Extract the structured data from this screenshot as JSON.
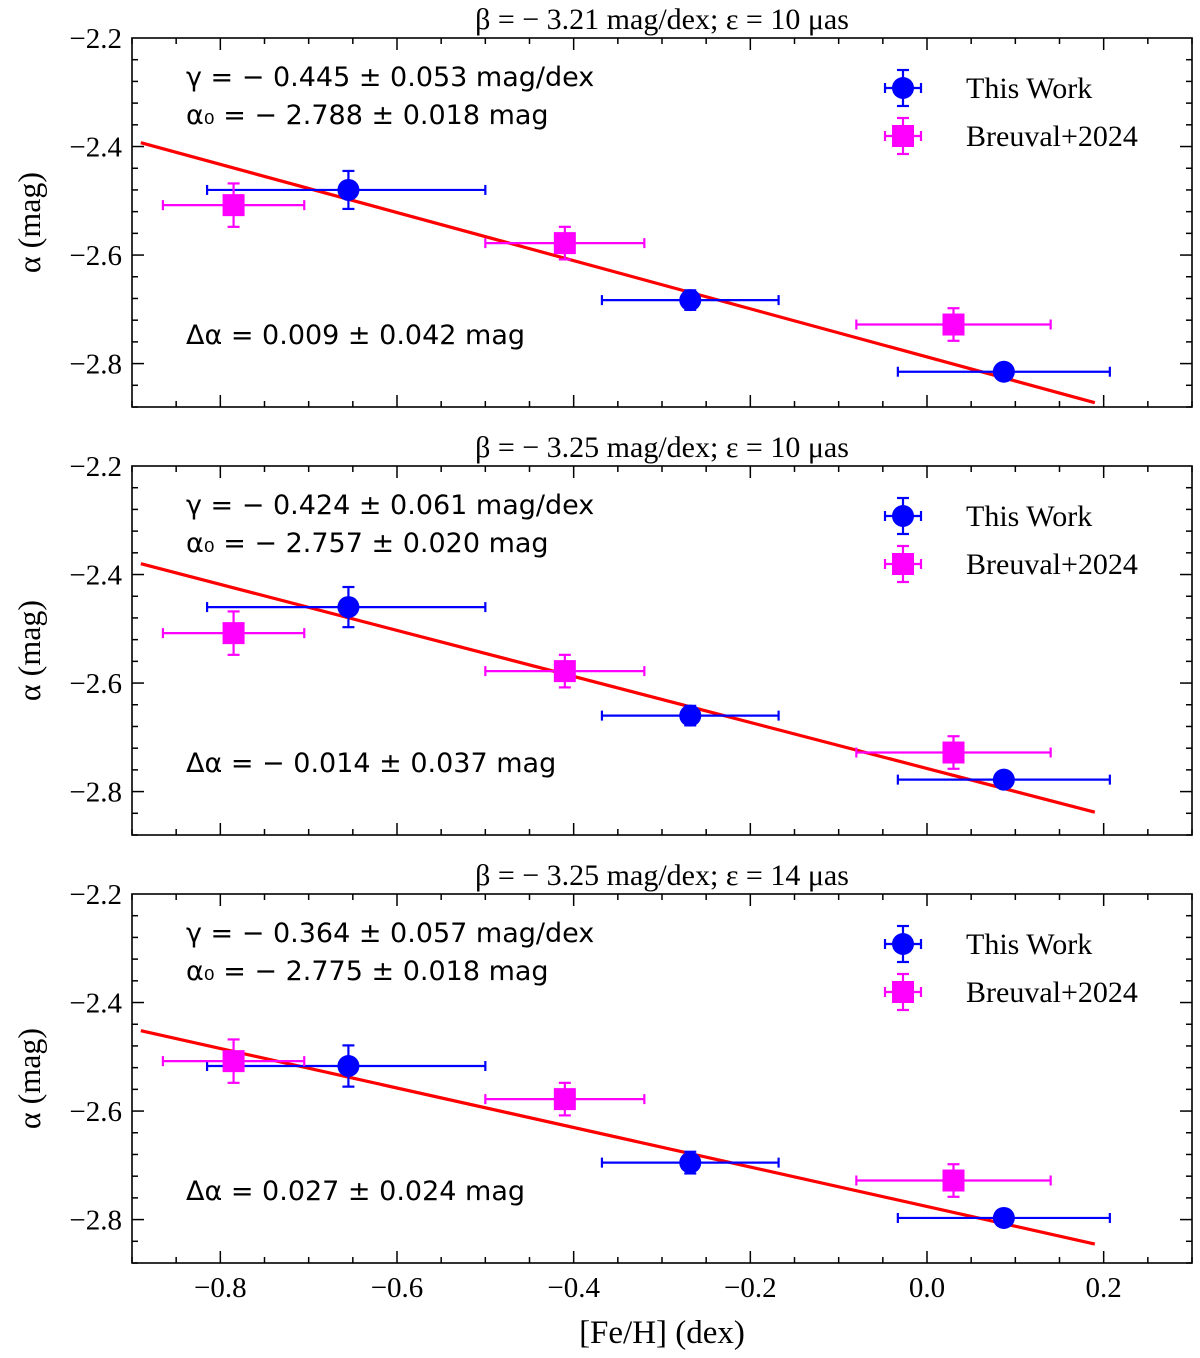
{
  "chart_data": {
    "type": "scatter",
    "x_axis": {
      "label": "[Fe/H] (dex)",
      "range": [
        -0.9,
        0.3
      ],
      "ticks": [
        -0.8,
        -0.6,
        -0.4,
        -0.2,
        0.0,
        0.2
      ],
      "tick_labels": [
        "−0.8",
        "−0.6",
        "−0.4",
        "−0.2",
        "0.0",
        "0.2"
      ]
    },
    "y_axis": {
      "label": "α (mag)",
      "range": [
        -2.88,
        -2.2
      ],
      "ticks": [
        -2.2,
        -2.4,
        -2.6,
        -2.8
      ],
      "tick_labels": [
        "−2.2",
        "−2.4",
        "−2.6",
        "−2.8"
      ]
    },
    "legend": {
      "placement": "top-right",
      "entries": [
        {
          "label": "This Work",
          "marker": "circle",
          "color": "#0000ff"
        },
        {
          "label": "Breuval+2024",
          "marker": "square",
          "color": "#ff00ff"
        }
      ]
    },
    "fit_color": "#ff0000",
    "panels": [
      {
        "title": "β = − 3.21 mag/dex; ε = 10 μas",
        "gamma_text": "γ = − 0.445 ± 0.053 mag/dex",
        "alpha0_text": "α₀ = − 2.788 ± 0.018 mag",
        "delta_text": "Δα = 0.009 ± 0.042 mag",
        "fit": {
          "x": [
            -0.89,
            0.19
          ],
          "y": [
            -2.393,
            -2.872
          ]
        },
        "series": [
          {
            "name": "This Work",
            "points": [
              {
                "x": -0.655,
                "y": -2.48,
                "xerr_lo": 0.16,
                "xerr_hi": 0.155,
                "yerr": 0.035
              },
              {
                "x": -0.268,
                "y": -2.683,
                "xerr_lo": 0.1,
                "xerr_hi": 0.1,
                "yerr": 0.018
              },
              {
                "x": 0.087,
                "y": -2.815,
                "xerr_lo": 0.12,
                "xerr_hi": 0.12,
                "yerr": 0.0
              }
            ]
          },
          {
            "name": "Breuval+2024",
            "points": [
              {
                "x": -0.785,
                "y": -2.508,
                "xerr_lo": 0.08,
                "xerr_hi": 0.08,
                "yerr": 0.04
              },
              {
                "x": -0.41,
                "y": -2.578,
                "xerr_lo": 0.09,
                "xerr_hi": 0.09,
                "yerr": 0.03
              },
              {
                "x": 0.03,
                "y": -2.728,
                "xerr_lo": 0.11,
                "xerr_hi": 0.11,
                "yerr": 0.03
              }
            ]
          }
        ]
      },
      {
        "title": "β = − 3.25 mag/dex; ε = 10 μas",
        "gamma_text": "γ = − 0.424 ± 0.061 mag/dex",
        "alpha0_text": "α₀ = − 2.757 ± 0.020 mag",
        "delta_text": "Δα = − 0.014 ± 0.037 mag",
        "fit": {
          "x": [
            -0.89,
            0.19
          ],
          "y": [
            -2.38,
            -2.838
          ]
        },
        "series": [
          {
            "name": "This Work",
            "points": [
              {
                "x": -0.655,
                "y": -2.46,
                "xerr_lo": 0.16,
                "xerr_hi": 0.155,
                "yerr": 0.037
              },
              {
                "x": -0.268,
                "y": -2.66,
                "xerr_lo": 0.1,
                "xerr_hi": 0.1,
                "yerr": 0.018
              },
              {
                "x": 0.087,
                "y": -2.778,
                "xerr_lo": 0.12,
                "xerr_hi": 0.12,
                "yerr": 0.0
              }
            ]
          },
          {
            "name": "Breuval+2024",
            "points": [
              {
                "x": -0.785,
                "y": -2.508,
                "xerr_lo": 0.08,
                "xerr_hi": 0.08,
                "yerr": 0.04
              },
              {
                "x": -0.41,
                "y": -2.578,
                "xerr_lo": 0.09,
                "xerr_hi": 0.09,
                "yerr": 0.03
              },
              {
                "x": 0.03,
                "y": -2.728,
                "xerr_lo": 0.11,
                "xerr_hi": 0.11,
                "yerr": 0.03
              }
            ]
          }
        ]
      },
      {
        "title": "β = − 3.25 mag/dex; ε = 14 μas",
        "gamma_text": "γ = − 0.364 ± 0.057 mag/dex",
        "alpha0_text": "α₀ = − 2.775 ± 0.018 mag",
        "delta_text": "Δα = 0.027 ± 0.024 mag",
        "fit": {
          "x": [
            -0.89,
            0.19
          ],
          "y": [
            -2.452,
            -2.845
          ]
        },
        "series": [
          {
            "name": "This Work",
            "points": [
              {
                "x": -0.655,
                "y": -2.517,
                "xerr_lo": 0.16,
                "xerr_hi": 0.155,
                "yerr": 0.038
              },
              {
                "x": -0.268,
                "y": -2.695,
                "xerr_lo": 0.1,
                "xerr_hi": 0.1,
                "yerr": 0.02
              },
              {
                "x": 0.087,
                "y": -2.797,
                "xerr_lo": 0.12,
                "xerr_hi": 0.12,
                "yerr": 0.0
              }
            ]
          },
          {
            "name": "Breuval+2024",
            "points": [
              {
                "x": -0.785,
                "y": -2.508,
                "xerr_lo": 0.08,
                "xerr_hi": 0.08,
                "yerr": 0.04
              },
              {
                "x": -0.41,
                "y": -2.578,
                "xerr_lo": 0.09,
                "xerr_hi": 0.09,
                "yerr": 0.03
              },
              {
                "x": 0.03,
                "y": -2.728,
                "xerr_lo": 0.11,
                "xerr_hi": 0.11,
                "yerr": 0.03
              }
            ]
          }
        ]
      }
    ]
  }
}
